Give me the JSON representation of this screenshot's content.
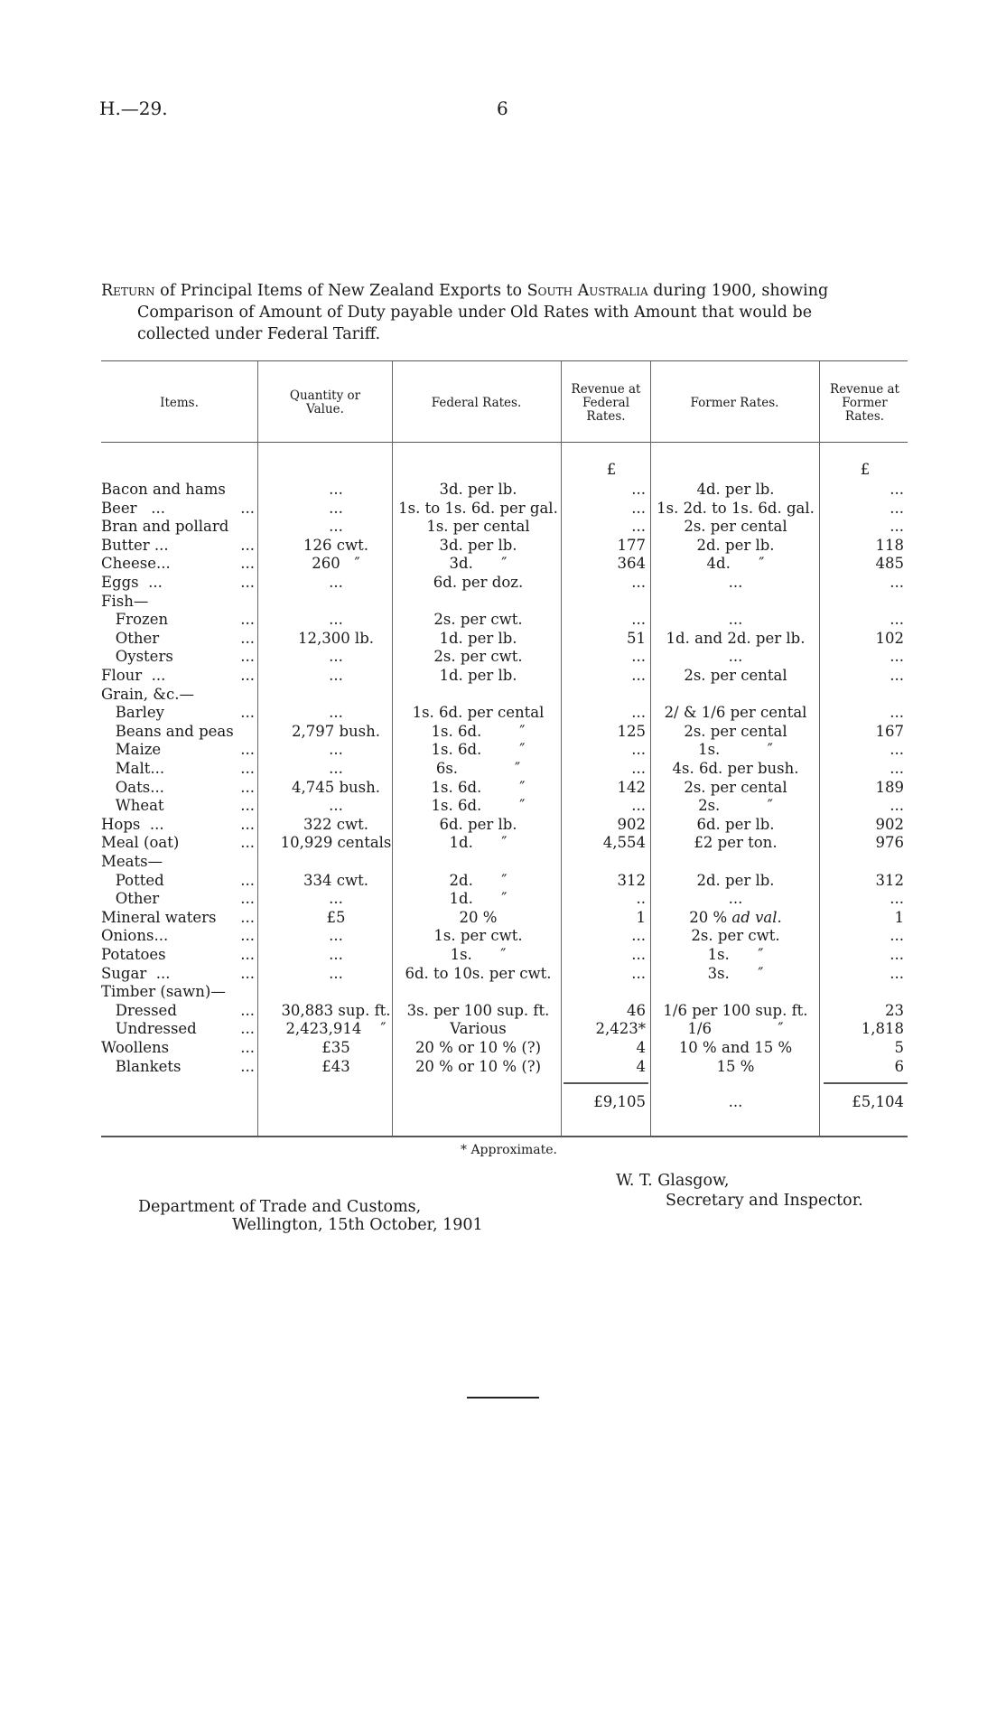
{
  "header": {
    "reference": "H.—29.",
    "page_number": "6"
  },
  "title": {
    "lead": "Return",
    "text1": " of Principal Items of New Zealand Exports to ",
    "country": "South Australia",
    "text2": " during 1900, showing",
    "line2": "Comparison of Amount of Duty payable under Old Rates with Amount that would be",
    "line3": "collected under Federal Tariff."
  },
  "columns": [
    "Items.",
    "Quantity or Value.",
    "Federal Rates.",
    "Revenue at Federal Rates.",
    "Former Rates.",
    "Revenue at Former Rates."
  ],
  "currency_row": {
    "rev_federal": "£",
    "rev_former": "£"
  },
  "rows": [
    {
      "item": "Bacon and hams",
      "dots": "",
      "qty": "...",
      "federal": "3d. per lb.",
      "rev_federal": "...",
      "former": "4d. per lb.",
      "rev_former": "..."
    },
    {
      "item": "Beer   ...",
      "dots": "...",
      "qty": "...",
      "federal": "1s. to 1s. 6d. per gal.",
      "rev_federal": "...",
      "former": "1s. 2d. to 1s. 6d. gal.",
      "rev_former": "..."
    },
    {
      "item": "Bran and pollard",
      "dots": "",
      "qty": "...",
      "federal": "1s. per cental",
      "rev_federal": "...",
      "former": "2s. per cental",
      "rev_former": "..."
    },
    {
      "item": "Butter ...",
      "dots": "...",
      "qty": "126 cwt.",
      "federal": "3d. per lb.",
      "rev_federal": "177",
      "former": "2d. per lb.",
      "rev_former": "118"
    },
    {
      "item": "Cheese...",
      "dots": "...",
      "qty": "260   ″",
      "federal": "3d.      ″",
      "rev_federal": "364",
      "former": "4d.      ″",
      "rev_former": "485"
    },
    {
      "item": "Eggs  ...",
      "dots": "...",
      "qty": "...",
      "federal": "6d. per doz.",
      "rev_federal": "...",
      "former": "...",
      "rev_former": "..."
    },
    {
      "item": "Fish—",
      "dots": "",
      "qty": "",
      "federal": "",
      "rev_federal": "",
      "former": "",
      "rev_former": ""
    },
    {
      "item": "   Frozen",
      "dots": "...",
      "qty": "...",
      "federal": "2s. per cwt.",
      "rev_federal": "...",
      "former": "...",
      "rev_former": "..."
    },
    {
      "item": "   Other",
      "dots": "...",
      "qty": "12,300 lb.",
      "federal": "1d. per lb.",
      "rev_federal": "51",
      "former": "1d. and 2d. per lb.",
      "rev_former": "102"
    },
    {
      "item": "   Oysters",
      "dots": "...",
      "qty": "...",
      "federal": "2s. per cwt.",
      "rev_federal": "...",
      "former": "...",
      "rev_former": "..."
    },
    {
      "item": "Flour  ...",
      "dots": "...",
      "qty": "...",
      "federal": "1d. per lb.",
      "rev_federal": "...",
      "former": "2s. per cental",
      "rev_former": "..."
    },
    {
      "item": "Grain, &c.—",
      "dots": "",
      "qty": "",
      "federal": "",
      "rev_federal": "",
      "former": "",
      "rev_former": ""
    },
    {
      "item": "   Barley",
      "dots": "...",
      "qty": "...",
      "federal": "1s. 6d. per cental",
      "rev_federal": "...",
      "former": "2/ & 1/6 per cental",
      "rev_former": "..."
    },
    {
      "item": "   Beans and peas",
      "dots": "",
      "qty": "2,797 bush.",
      "federal": "1s. 6d.        ″",
      "rev_federal": "125",
      "former": "2s. per cental",
      "rev_former": "167"
    },
    {
      "item": "   Maize",
      "dots": "...",
      "qty": "...",
      "federal": "1s. 6d.        ″",
      "rev_federal": "...",
      "former": "1s.          ″",
      "rev_former": "..."
    },
    {
      "item": "   Malt...",
      "dots": "...",
      "qty": "...",
      "federal": "6s.            ″",
      "rev_federal": "...",
      "former": "4s. 6d. per bush.",
      "rev_former": "..."
    },
    {
      "item": "   Oats...",
      "dots": "...",
      "qty": "4,745 bush.",
      "federal": "1s. 6d.        ″",
      "rev_federal": "142",
      "former": "2s. per cental",
      "rev_former": "189"
    },
    {
      "item": "   Wheat",
      "dots": "...",
      "qty": "...",
      "federal": "1s. 6d.        ″",
      "rev_federal": "...",
      "former": "2s.          ″",
      "rev_former": "..."
    },
    {
      "item": "Hops  ...",
      "dots": "...",
      "qty": "322 cwt.",
      "federal": "6d. per lb.",
      "rev_federal": "902",
      "former": "6d. per lb.",
      "rev_former": "902"
    },
    {
      "item": "Meal (oat)",
      "dots": "...",
      "qty": "10,929 centals",
      "federal": "1d.      ″",
      "rev_federal": "4,554",
      "former": "£2 per ton.",
      "rev_former": "976"
    },
    {
      "item": "Meats—",
      "dots": "",
      "qty": "",
      "federal": "",
      "rev_federal": "",
      "former": "",
      "rev_former": ""
    },
    {
      "item": "   Potted",
      "dots": "...",
      "qty": "334 cwt.",
      "federal": "2d.      ″",
      "rev_federal": "312",
      "former": "2d. per lb.",
      "rev_former": "312"
    },
    {
      "item": "   Other",
      "dots": "...",
      "qty": "...",
      "federal": "1d.      ″",
      "rev_federal": "..",
      "former": "...",
      "rev_former": "..."
    },
    {
      "item": "Mineral waters",
      "dots": "...",
      "qty": "£5",
      "federal": "20 %",
      "rev_federal": "1",
      "former": "20 % ",
      "former_ital": "ad val.",
      "rev_former": "1"
    },
    {
      "item": "Onions...",
      "dots": "...",
      "qty": "...",
      "federal": "1s. per cwt.",
      "rev_federal": "...",
      "former": "2s. per cwt.",
      "rev_former": "..."
    },
    {
      "item": "Potatoes",
      "dots": "...",
      "qty": "...",
      "federal": "1s.      ″",
      "rev_federal": "...",
      "former": "1s.      ″",
      "rev_former": "..."
    },
    {
      "item": "Sugar  ...",
      "dots": "...",
      "qty": "...",
      "federal": "6d. to 10s. per cwt.",
      "rev_federal": "...",
      "former": "3s.      ″",
      "rev_former": "..."
    },
    {
      "item": "Timber (sawn)—",
      "dots": "",
      "qty": "",
      "federal": "",
      "rev_federal": "",
      "former": "",
      "rev_former": ""
    },
    {
      "item": "   Dressed",
      "dots": "...",
      "qty": "30,883 sup. ft.",
      "federal": "3s. per 100 sup. ft.",
      "rev_federal": "46",
      "former": "1/6 per 100 sup. ft.",
      "rev_former": "23"
    },
    {
      "item": "   Undressed",
      "dots": "...",
      "qty": "2,423,914    ″",
      "federal": "Various",
      "rev_federal": "2,423*",
      "former": "1/6              ″",
      "rev_former": "1,818"
    },
    {
      "item": "Woollens",
      "dots": "...",
      "qty": "£35",
      "federal": "20 % or 10 % (?)",
      "rev_federal": "4",
      "former": "10 % and 15 %",
      "rev_former": "5"
    },
    {
      "item": "   Blankets",
      "dots": "...",
      "qty": "£43",
      "federal": "20 % or 10 % (?)",
      "rev_federal": "4",
      "former": "15 %",
      "rev_former": "6"
    }
  ],
  "totals": {
    "rev_federal": "£9,105",
    "former": "...",
    "rev_former": "£5,104"
  },
  "footnote": "* Approximate.",
  "signature": {
    "name": "W. T. Glasgow,",
    "title": "Secretary and Inspector."
  },
  "department": {
    "line1": "Department of Trade and Customs,",
    "line2": "Wellington, 15th October, 1901"
  }
}
